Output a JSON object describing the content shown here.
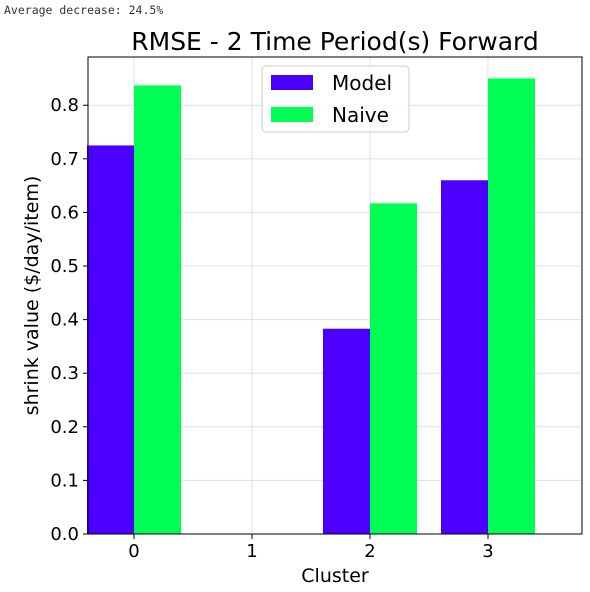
{
  "output": {
    "summary_text": "Average decrease: 24.5%"
  },
  "chart_data": {
    "type": "bar",
    "title": "RMSE - 2 Time Period(s) Forward",
    "xlabel": "Cluster",
    "ylabel": "shrink value ($/day/item)",
    "categories": [
      "0",
      "1",
      "2",
      "3"
    ],
    "series": [
      {
        "name": "Model",
        "color": "#4b00ff",
        "values": [
          0.725,
          null,
          0.383,
          0.66
        ]
      },
      {
        "name": "Naive",
        "color": "#00ff55",
        "values": [
          0.837,
          null,
          0.617,
          0.85
        ]
      }
    ],
    "ylim": [
      0,
      0.89
    ],
    "yticks": [
      "0.0",
      "0.1",
      "0.2",
      "0.3",
      "0.4",
      "0.5",
      "0.6",
      "0.7",
      "0.8"
    ],
    "grid": true,
    "legend_position": "top-center"
  }
}
